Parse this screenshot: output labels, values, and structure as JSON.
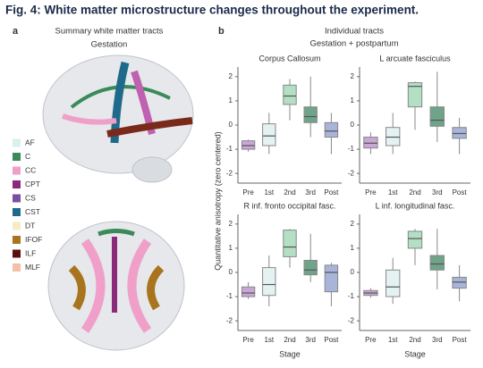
{
  "figure_title": "Fig. 4: White matter microstructure changes throughout the experiment.",
  "panel_a": {
    "label": "a",
    "title": "Summary white matter tracts",
    "subtitle": "Gestation",
    "legend": [
      {
        "name": "AF",
        "color": "#d8f0ee"
      },
      {
        "name": "C",
        "color": "#3a8a5a"
      },
      {
        "name": "CC",
        "color": "#f0a0c8"
      },
      {
        "name": "CPT",
        "color": "#8b2a7a"
      },
      {
        "name": "CS",
        "color": "#7a4fa0"
      },
      {
        "name": "CST",
        "color": "#1f6a8a"
      },
      {
        "name": "DT",
        "color": "#f4ecc4"
      },
      {
        "name": "IFOF",
        "color": "#a8741e"
      },
      {
        "name": "ILF",
        "color": "#5a1010"
      },
      {
        "name": "MLF",
        "color": "#f4c0a8"
      }
    ]
  },
  "panel_b": {
    "label": "b",
    "title": "Individual tracts",
    "subtitle": "Gestation + postpartum",
    "ylabel": "Quantitative anisotropy (zero centered)"
  },
  "chart_data": [
    {
      "type": "box",
      "title": "Corpus Callosum",
      "categories": [
        "Pre",
        "1st",
        "2nd",
        "3rd",
        "Post"
      ],
      "colors": [
        "#c9a6d6",
        "#e4f3f2",
        "#b3dfc4",
        "#6fa48a",
        "#a9b4d9"
      ],
      "min": [
        -1.1,
        -1.2,
        0.2,
        -0.5,
        -1.2
      ],
      "q1": [
        -1.0,
        -0.85,
        0.85,
        0.1,
        -0.5
      ],
      "median": [
        -0.85,
        -0.45,
        1.2,
        0.35,
        -0.25
      ],
      "q3": [
        -0.65,
        0.05,
        1.65,
        0.75,
        0.1
      ],
      "max": [
        -0.6,
        0.5,
        1.9,
        2.0,
        0.5
      ],
      "ylim": [
        -2.4,
        2.4
      ],
      "yticks": [
        -2,
        -1,
        0,
        1,
        2
      ]
    },
    {
      "type": "box",
      "title": "L arcuate fasciculus",
      "categories": [
        "Pre",
        "1st",
        "2nd",
        "3rd",
        "Post"
      ],
      "colors": [
        "#c9a6d6",
        "#e4f3f2",
        "#b3dfc4",
        "#6fa48a",
        "#a9b4d9"
      ],
      "min": [
        -1.2,
        -1.2,
        -0.2,
        -0.7,
        -1.2
      ],
      "q1": [
        -0.95,
        -0.85,
        0.75,
        -0.05,
        -0.55
      ],
      "median": [
        -0.75,
        -0.5,
        1.6,
        0.2,
        -0.35
      ],
      "q3": [
        -0.5,
        -0.1,
        1.75,
        0.75,
        -0.1
      ],
      "max": [
        -0.3,
        0.5,
        1.8,
        2.2,
        0.3
      ],
      "ylim": [
        -2.4,
        2.4
      ],
      "yticks": [
        -2,
        -1,
        0,
        1,
        2
      ]
    },
    {
      "type": "box",
      "title": "R inf. fronto occipital fasc.",
      "xlabel": "Stage",
      "categories": [
        "Pre",
        "1st",
        "2nd",
        "3rd",
        "Post"
      ],
      "colors": [
        "#c9a6d6",
        "#e4f3f2",
        "#b3dfc4",
        "#6fa48a",
        "#a9b4d9"
      ],
      "min": [
        -1.1,
        -1.4,
        0.2,
        -0.4,
        -1.4
      ],
      "q1": [
        -1.0,
        -0.95,
        0.65,
        -0.1,
        -0.8
      ],
      "median": [
        -0.85,
        -0.5,
        1.05,
        0.1,
        0
      ],
      "q3": [
        -0.6,
        0.2,
        1.75,
        0.5,
        0.3
      ],
      "max": [
        -0.4,
        0.7,
        1.8,
        1.6,
        0.4
      ],
      "ylim": [
        -2.4,
        2.4
      ],
      "yticks": [
        -2,
        -1,
        0,
        1,
        2
      ]
    },
    {
      "type": "box",
      "title": "L inf. longitudinal fasc.",
      "xlabel": "Stage",
      "categories": [
        "Pre",
        "1st",
        "2nd",
        "3rd",
        "Post"
      ],
      "colors": [
        "#c9a6d6",
        "#e4f3f2",
        "#b3dfc4",
        "#6fa48a",
        "#a9b4d9"
      ],
      "min": [
        -1.05,
        -1.3,
        0.3,
        -0.7,
        -1.2
      ],
      "q1": [
        -0.95,
        -1.0,
        1.0,
        0.1,
        -0.65
      ],
      "median": [
        -0.85,
        -0.6,
        1.4,
        0.35,
        -0.4
      ],
      "q3": [
        -0.75,
        0.1,
        1.7,
        0.7,
        -0.2
      ],
      "max": [
        -0.65,
        0.6,
        1.8,
        1.8,
        0.3
      ],
      "ylim": [
        -2.4,
        2.4
      ],
      "yticks": [
        -2,
        -1,
        0,
        1,
        2
      ]
    }
  ]
}
